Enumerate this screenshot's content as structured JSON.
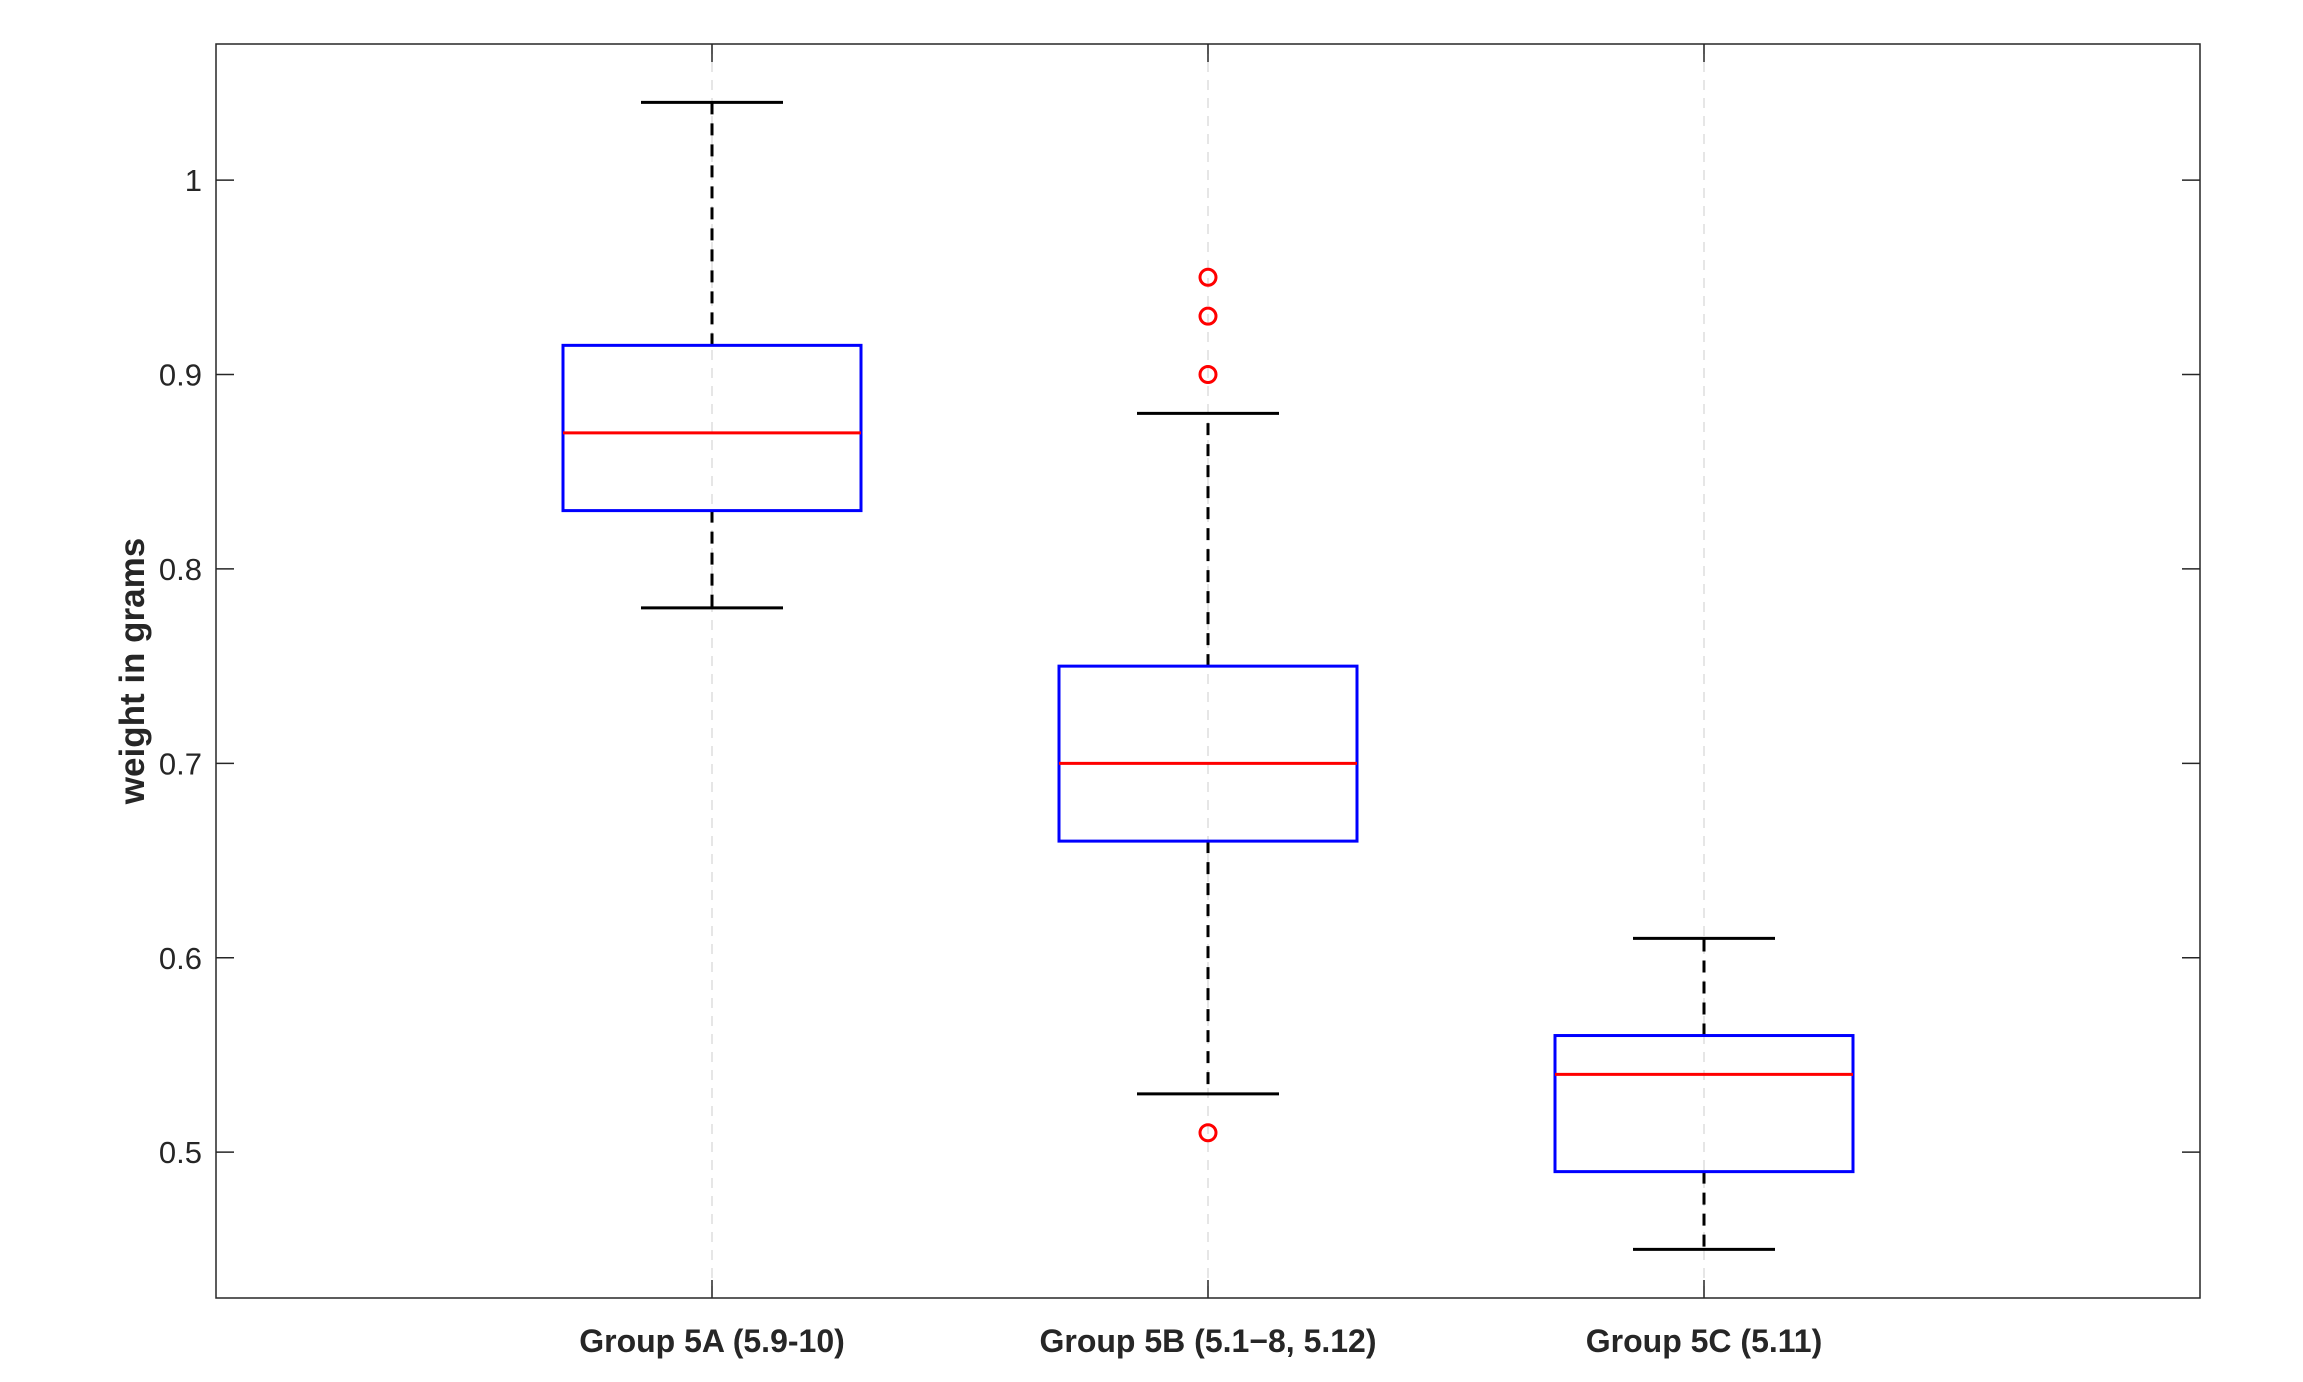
{
  "chart_data": {
    "type": "boxplot",
    "title": "",
    "xlabel": "",
    "ylabel": "weight in grams",
    "ylim": [
      0.425,
      1.07
    ],
    "yticks": [
      0.5,
      0.6,
      0.7,
      0.8,
      0.9,
      1
    ],
    "ytick_labels": [
      "0.5",
      "0.6",
      "0.7",
      "0.8",
      "0.9",
      "1"
    ],
    "grid": {
      "x": true,
      "y": false,
      "style": "dashed-light"
    },
    "colors": {
      "box": "#0000FF",
      "median": "#FF0000",
      "whisker": "#000000",
      "outlier": "#FF0000",
      "axes": "#262626",
      "grid": "#E6E6E6"
    },
    "categories": [
      "Group 5A (5.9-10)",
      "Group 5B (5.1−8, 5.12)",
      "Group 5C (5.11)"
    ],
    "boxes": [
      {
        "category": "Group 5A (5.9-10)",
        "whisker_low": 0.78,
        "q1": 0.83,
        "median": 0.87,
        "q3": 0.915,
        "whisker_high": 1.04,
        "outliers": []
      },
      {
        "category": "Group 5B (5.1−8, 5.12)",
        "whisker_low": 0.53,
        "q1": 0.66,
        "median": 0.7,
        "q3": 0.75,
        "whisker_high": 0.88,
        "outliers": [
          0.51,
          0.9,
          0.93,
          0.95
        ]
      },
      {
        "category": "Group 5C (5.11)",
        "whisker_low": 0.45,
        "q1": 0.49,
        "median": 0.54,
        "q3": 0.56,
        "whisker_high": 0.61,
        "outliers": []
      }
    ]
  }
}
